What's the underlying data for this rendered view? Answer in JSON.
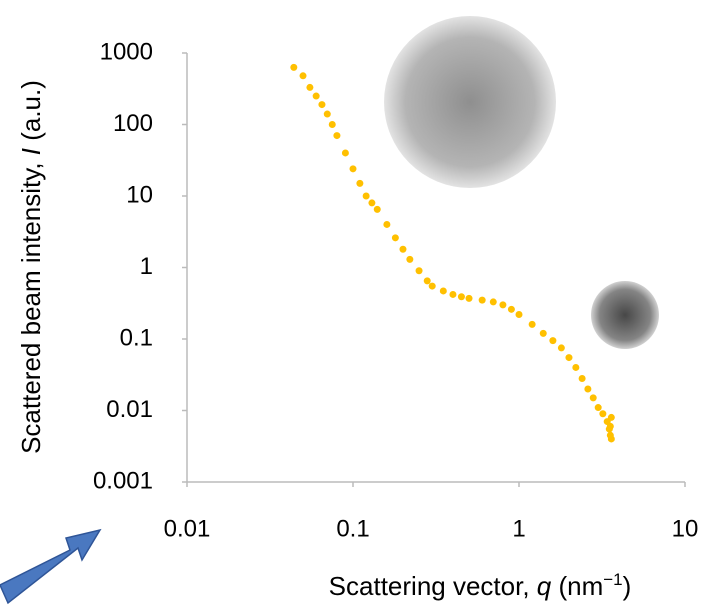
{
  "chart_data": {
    "type": "scatter",
    "xlabel": [
      "Scattering vector, ",
      "q",
      " (nm",
      "−1",
      ")"
    ],
    "ylabel": [
      "Scattered  beam intensity, ",
      "I",
      " (a.u.)"
    ],
    "log_x": true,
    "log_y": true,
    "xlim": [
      0.01,
      10
    ],
    "xticks": [
      0.01,
      0.1,
      1,
      10
    ],
    "ylim": [
      0.001,
      1000
    ],
    "yticks": [
      1000,
      100,
      10,
      1,
      0.1,
      0.01,
      0.001
    ],
    "color": "#ffc000",
    "x": [
      0.044,
      0.05,
      0.055,
      0.06,
      0.065,
      0.07,
      0.075,
      0.08,
      0.09,
      0.1,
      0.11,
      0.12,
      0.13,
      0.14,
      0.16,
      0.18,
      0.2,
      0.22,
      0.25,
      0.28,
      0.3,
      0.35,
      0.4,
      0.45,
      0.5,
      0.6,
      0.7,
      0.8,
      0.9,
      1.0,
      1.2,
      1.4,
      1.6,
      1.8,
      2.0,
      2.2,
      2.4,
      2.6,
      2.8,
      3.0,
      3.2,
      3.4,
      3.5,
      3.55,
      3.6,
      3.6,
      3.55
    ],
    "y": [
      630,
      480,
      330,
      250,
      190,
      140,
      100,
      70,
      40,
      24,
      15,
      10,
      8,
      6.5,
      4,
      2.6,
      1.8,
      1.3,
      0.9,
      0.65,
      0.55,
      0.47,
      0.42,
      0.39,
      0.37,
      0.35,
      0.33,
      0.3,
      0.26,
      0.22,
      0.16,
      0.12,
      0.095,
      0.075,
      0.055,
      0.04,
      0.028,
      0.02,
      0.015,
      0.011,
      0.009,
      0.007,
      0.0055,
      0.0045,
      0.008,
      0.004,
      0.006
    ]
  }
}
